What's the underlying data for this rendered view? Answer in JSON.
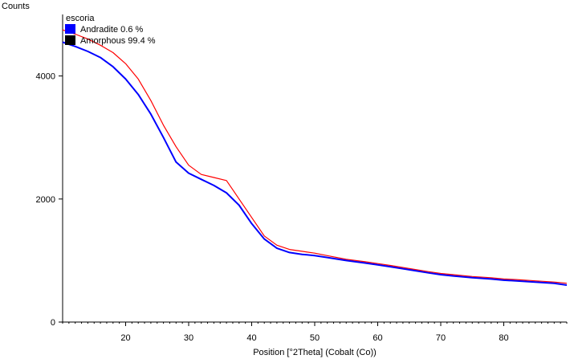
{
  "chart_data": {
    "type": "line",
    "title": "",
    "ylabel": "Counts",
    "xlabel": "Position [°2Theta] (Cobalt (Co))",
    "xlim": [
      10,
      90
    ],
    "ylim": [
      0,
      5000
    ],
    "x_ticks": [
      20,
      30,
      40,
      50,
      60,
      70,
      80
    ],
    "y_ticks": [
      0,
      2000,
      4000
    ],
    "legend": {
      "title": "escoria",
      "entries": [
        {
          "label": "Andradite 0.6 %",
          "color": "#0000ff"
        },
        {
          "label": "Amorphous 99.4 %",
          "color": "#000000"
        }
      ],
      "placement": "top-left"
    },
    "series": [
      {
        "color": "#ff0000",
        "x": [
          10,
          12,
          14,
          16,
          18,
          20,
          22,
          24,
          26,
          28,
          30,
          32,
          34,
          36,
          37,
          38,
          40,
          42,
          44,
          46,
          48,
          50,
          52,
          55,
          58,
          60,
          62,
          65,
          68,
          70,
          72,
          75,
          78,
          80,
          82,
          85,
          88,
          90
        ],
        "y": [
          4750,
          4680,
          4600,
          4500,
          4380,
          4200,
          3950,
          3600,
          3200,
          2850,
          2550,
          2400,
          2350,
          2300,
          2150,
          2000,
          1700,
          1400,
          1250,
          1180,
          1150,
          1120,
          1080,
          1020,
          980,
          950,
          920,
          870,
          820,
          790,
          770,
          740,
          720,
          700,
          690,
          670,
          650,
          630
        ]
      },
      {
        "color": "#0000ff",
        "x": [
          10,
          12,
          14,
          16,
          18,
          20,
          22,
          24,
          26,
          28,
          30,
          32,
          34,
          36,
          38,
          40,
          42,
          44,
          46,
          48,
          50,
          52,
          55,
          58,
          60,
          62,
          65,
          68,
          70,
          72,
          75,
          78,
          80,
          82,
          85,
          88,
          90
        ],
        "y": [
          4550,
          4480,
          4400,
          4300,
          4150,
          3950,
          3700,
          3380,
          3000,
          2600,
          2420,
          2320,
          2220,
          2100,
          1900,
          1600,
          1350,
          1200,
          1130,
          1100,
          1080,
          1050,
          1000,
          960,
          930,
          900,
          850,
          800,
          770,
          750,
          720,
          700,
          680,
          670,
          650,
          630,
          600
        ]
      }
    ]
  }
}
